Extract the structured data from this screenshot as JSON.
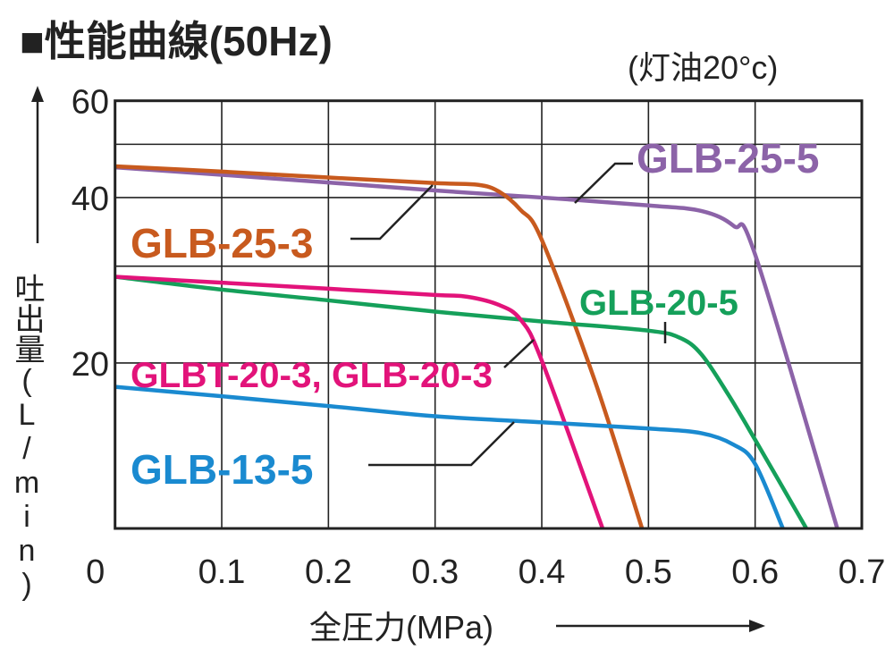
{
  "chart_data": {
    "type": "line",
    "title": "■性能曲線(50Hz)",
    "subtitle": "(灯油20°c)",
    "xlabel": "全圧力(MPa)",
    "ylabel": "吐出量(L/min)",
    "xlim": [
      0,
      0.7
    ],
    "ylim": [
      10,
      60
    ],
    "yscale": "log",
    "grid": true,
    "x_ticks": [
      "0",
      "0.1",
      "0.2",
      "0.3",
      "0.4",
      "0.5",
      "0.6",
      "0.7"
    ],
    "x_tick_values": [
      0,
      0.1,
      0.2,
      0.3,
      0.4,
      0.5,
      0.6,
      0.7
    ],
    "y_ticks": [
      "20",
      "40",
      "60"
    ],
    "y_tick_values": [
      20,
      40,
      60
    ],
    "y_grid_values": [
      10,
      20,
      30,
      40,
      50,
      60
    ],
    "series": [
      {
        "name": "GLB-25-5",
        "color": "#8c63a8",
        "x": [
          0,
          0.1,
          0.2,
          0.3,
          0.4,
          0.5,
          0.55,
          0.58,
          0.6,
          0.677
        ],
        "y": [
          45.4,
          44.0,
          42.6,
          41.2,
          40.0,
          38.7,
          37.8,
          35.5,
          31.5,
          10
        ]
      },
      {
        "name": "GLB-25-3",
        "color": "#c85a1e",
        "x": [
          0,
          0.1,
          0.2,
          0.3,
          0.34,
          0.36,
          0.38,
          0.4,
          0.45,
          0.494
        ],
        "y": [
          45.6,
          44.6,
          43.5,
          42.5,
          42.2,
          41.0,
          38.0,
          33.5,
          18.5,
          10
        ]
      },
      {
        "name": "GLB-20-5",
        "color": "#15a05a",
        "x": [
          0,
          0.1,
          0.2,
          0.3,
          0.4,
          0.5,
          0.53,
          0.55,
          0.575,
          0.6,
          0.648
        ],
        "y": [
          28.7,
          27.2,
          26.0,
          24.8,
          23.8,
          22.9,
          22.2,
          20.7,
          17.5,
          14.5,
          10
        ]
      },
      {
        "name": "GLBT-20-3, GLB-20-3",
        "color": "#e2137a",
        "x": [
          0,
          0.1,
          0.2,
          0.3,
          0.33,
          0.36,
          0.38,
          0.4,
          0.457
        ],
        "y": [
          28.7,
          28.0,
          27.3,
          26.6,
          26.4,
          25.5,
          24.0,
          20.2,
          10
        ]
      },
      {
        "name": "GLB-13-5",
        "color": "#1a8ad0",
        "x": [
          0,
          0.1,
          0.2,
          0.3,
          0.4,
          0.5,
          0.55,
          0.58,
          0.6,
          0.626
        ],
        "y": [
          18.1,
          17.4,
          16.7,
          16.0,
          15.6,
          15.2,
          14.9,
          14.2,
          13.1,
          10
        ]
      }
    ]
  }
}
